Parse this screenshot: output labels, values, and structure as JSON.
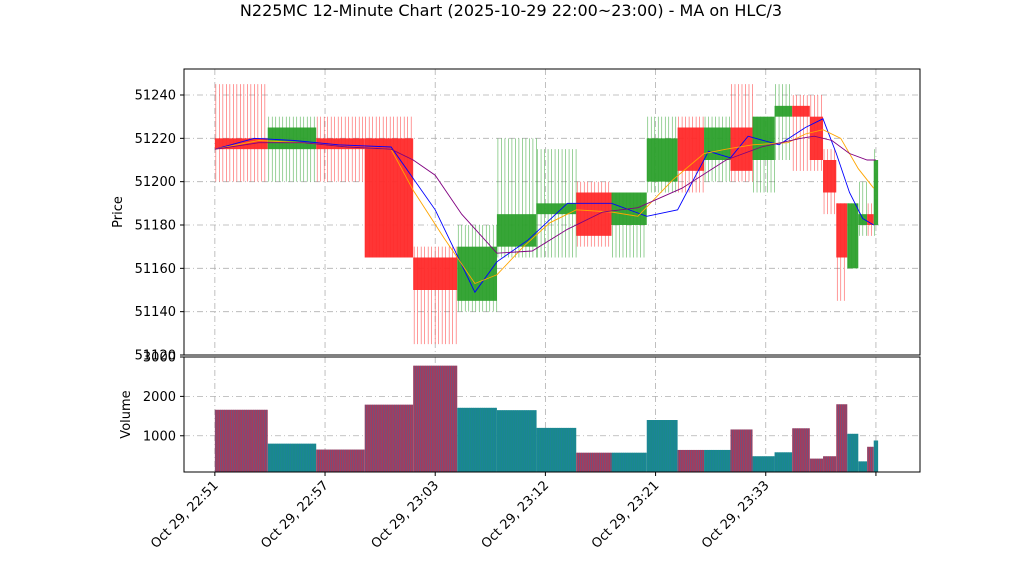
{
  "chart_data": {
    "type": "candlestick",
    "title": "N225MC 12-Minute Chart (2025-10-29 22:00~23:00) - MA on HLC/3",
    "colors": {
      "up": "#2ca02c",
      "down": "#ff2a2a",
      "ma_short": "#0000ff",
      "ma_mid": "#ffa500",
      "ma_long": "#800080",
      "volume_up": "#1a8a8a",
      "volume_down": "#a83a5a",
      "volume_edge": "#1f77b4",
      "grid": "#b0b0b0"
    },
    "price_panel": {
      "ylabel": "Price",
      "ylim": [
        51120,
        51252
      ],
      "yticks": [
        51120,
        51140,
        51160,
        51180,
        51200,
        51220,
        51240
      ],
      "grid": true
    },
    "volume_panel": {
      "ylabel": "Volume",
      "ylim": [
        80,
        3000
      ],
      "yticks": [
        1000,
        2000,
        3000
      ],
      "grid": true
    },
    "x_axis": {
      "xlim": [
        -7,
        160
      ],
      "tick_positions": [
        0,
        25,
        50,
        75,
        100,
        125,
        150
      ],
      "tick_labels": [
        "Oct 29, 22:51",
        "Oct 29, 22:57",
        "Oct 29, 23:03",
        "Oct 29, 23:12",
        "Oct 29, 23:21",
        "Oct 29, 23:33",
        ""
      ]
    },
    "candles": [
      {
        "x0": 0,
        "x1": 12,
        "open": 51220,
        "high": 51245,
        "low": 51200,
        "close": 51215,
        "volume": 1660
      },
      {
        "x0": 12,
        "x1": 23,
        "open": 51215,
        "high": 51230,
        "low": 51200,
        "close": 51225,
        "volume": 800
      },
      {
        "x0": 23,
        "x1": 34,
        "open": 51220,
        "high": 51230,
        "low": 51200,
        "close": 51215,
        "volume": 650
      },
      {
        "x0": 34,
        "x1": 45,
        "open": 51220,
        "high": 51230,
        "low": 51165,
        "close": 51165,
        "volume": 1790
      },
      {
        "x0": 45,
        "x1": 55,
        "open": 51165,
        "high": 51170,
        "low": 51125,
        "close": 51150,
        "volume": 2780
      },
      {
        "x0": 55,
        "x1": 64,
        "open": 51145,
        "high": 51180,
        "low": 51140,
        "close": 51170,
        "volume": 1710
      },
      {
        "x0": 64,
        "x1": 73,
        "open": 51170,
        "high": 51220,
        "low": 51165,
        "close": 51185,
        "volume": 1650
      },
      {
        "x0": 73,
        "x1": 82,
        "open": 51185,
        "high": 51215,
        "low": 51165,
        "close": 51190,
        "volume": 1200
      },
      {
        "x0": 82,
        "x1": 90,
        "open": 51195,
        "high": 51200,
        "low": 51170,
        "close": 51175,
        "volume": 570
      },
      {
        "x0": 90,
        "x1": 98,
        "open": 51180,
        "high": 51195,
        "low": 51165,
        "close": 51195,
        "volume": 570
      },
      {
        "x0": 98,
        "x1": 105,
        "open": 51200,
        "high": 51230,
        "low": 51195,
        "close": 51220,
        "volume": 1400
      },
      {
        "x0": 105,
        "x1": 111,
        "open": 51225,
        "high": 51230,
        "low": 51195,
        "close": 51205,
        "volume": 640
      },
      {
        "x0": 111,
        "x1": 117,
        "open": 51210,
        "high": 51230,
        "low": 51200,
        "close": 51225,
        "volume": 640
      },
      {
        "x0": 117,
        "x1": 122,
        "open": 51225,
        "high": 51245,
        "low": 51200,
        "close": 51205,
        "volume": 1160
      },
      {
        "x0": 122,
        "x1": 127,
        "open": 51210,
        "high": 51230,
        "low": 51195,
        "close": 51230,
        "volume": 480
      },
      {
        "x0": 127,
        "x1": 131,
        "open": 51230,
        "high": 51245,
        "low": 51210,
        "close": 51235,
        "volume": 580
      },
      {
        "x0": 131,
        "x1": 135,
        "open": 51235,
        "high": 51240,
        "low": 51205,
        "close": 51230,
        "volume": 1190
      },
      {
        "x0": 135,
        "x1": 138,
        "open": 51230,
        "high": 51240,
        "low": 51205,
        "close": 51210,
        "volume": 420
      },
      {
        "x0": 138,
        "x1": 141,
        "open": 51210,
        "high": 51215,
        "low": 51185,
        "close": 51195,
        "volume": 480
      },
      {
        "x0": 141,
        "x1": 143.5,
        "open": 51190,
        "high": 51190,
        "low": 51145,
        "close": 51165,
        "volume": 1800
      },
      {
        "x0": 143.5,
        "x1": 146,
        "open": 51160,
        "high": 51190,
        "low": 51160,
        "close": 51190,
        "volume": 1050
      },
      {
        "x0": 146,
        "x1": 148,
        "open": 51180,
        "high": 51200,
        "low": 51175,
        "close": 51185,
        "volume": 350
      },
      {
        "x0": 148,
        "x1": 149.5,
        "open": 51185,
        "high": 51190,
        "low": 51175,
        "close": 51180,
        "volume": 720
      },
      {
        "x0": 149.5,
        "x1": 150.5,
        "open": 51180,
        "high": 51215,
        "low": 51175,
        "close": 51210,
        "volume": 880
      }
    ],
    "ma_lines": [
      {
        "key": "ma_short",
        "x": [
          0,
          9,
          18,
          28,
          40,
          50,
          59,
          64,
          71,
          80,
          90,
          98,
          105,
          112,
          117,
          121,
          128,
          134,
          138,
          141,
          144,
          147,
          149.5
        ],
        "y": [
          51215,
          51220,
          51219,
          51217,
          51216,
          51187,
          51149,
          51163,
          51173,
          51190,
          51190,
          51184,
          51187,
          51214,
          51211,
          51221,
          51217,
          51225,
          51229,
          51213,
          51195,
          51183,
          51180
        ]
      },
      {
        "key": "ma_mid",
        "x": [
          0,
          10,
          20,
          30,
          40,
          45,
          52,
          59,
          64,
          70,
          76,
          82,
          90,
          96,
          104,
          111,
          116,
          122,
          130,
          134,
          138,
          142,
          146,
          149.5
        ],
        "y": [
          51215,
          51219,
          51218,
          51216,
          51215,
          51196,
          51174,
          51153,
          51157,
          51170,
          51181,
          51187,
          51186,
          51184,
          51201,
          51213,
          51215,
          51217,
          51218,
          51222,
          51224,
          51220,
          51206,
          51197
        ]
      },
      {
        "key": "ma_long",
        "x": [
          0,
          10,
          20,
          30,
          40,
          45,
          50,
          56,
          64,
          72,
          80,
          88,
          96,
          106,
          116,
          124,
          133,
          136,
          140,
          144,
          148,
          150
        ],
        "y": [
          51215,
          51218,
          51218,
          51216,
          51215,
          51210,
          51203,
          51185,
          51167,
          51168,
          51178,
          51186,
          51188,
          51197,
          51210,
          51216,
          51220,
          51221,
          51219,
          51213,
          51210,
          51210
        ]
      }
    ]
  }
}
